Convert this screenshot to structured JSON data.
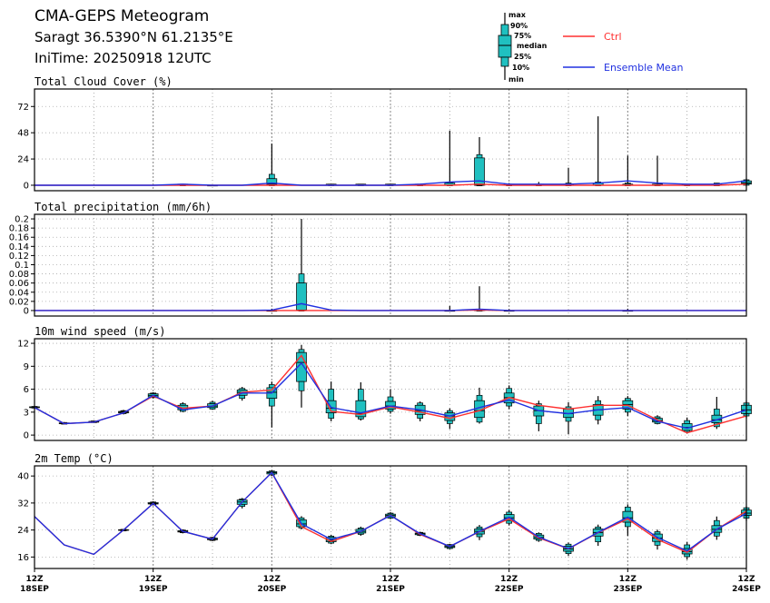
{
  "header": {
    "title": "CMA-GEPS Meteogram",
    "location": "Saragt 36.5390°N 61.2135°E",
    "init_time": "IniTime: 20250918 12UTC"
  },
  "legend": {
    "box_labels": [
      "max",
      "90%",
      "75%",
      "median",
      "25%",
      "10%",
      "min"
    ],
    "ctrl_label": "Ctrl",
    "mean_label": "Ensemble Mean",
    "ctrl_color": "#ff3030",
    "mean_color": "#2030e0",
    "box_color": "#20c0c0"
  },
  "x_axis": {
    "ticks": [
      {
        "hour": "12Z",
        "date": "18SEP",
        "t": 0
      },
      {
        "hour": "12Z",
        "date": "19SEP",
        "t": 4
      },
      {
        "hour": "12Z",
        "date": "20SEP",
        "t": 8
      },
      {
        "hour": "12Z",
        "date": "21SEP",
        "t": 12
      },
      {
        "hour": "12Z",
        "date": "22SEP",
        "t": 16
      },
      {
        "hour": "12Z",
        "date": "23SEP",
        "t": 20
      },
      {
        "hour": "12Z",
        "date": "24SEP",
        "t": 24
      }
    ]
  },
  "chart_data": [
    {
      "type": "box",
      "title": "Total Cloud Cover (%)",
      "ylim": [
        -5,
        88
      ],
      "yticks": [
        "0",
        "24",
        "48",
        "72"
      ],
      "ytick_values": [
        0,
        24,
        48,
        72
      ],
      "x": [
        0,
        1,
        2,
        3,
        4,
        5,
        6,
        7,
        8,
        9,
        10,
        11,
        12,
        13,
        14,
        15,
        16,
        17,
        18,
        19,
        20,
        21,
        22,
        23,
        24
      ],
      "ctrl": [
        0,
        0,
        0,
        0,
        0,
        0,
        0,
        0,
        0,
        0,
        0,
        0,
        0,
        0,
        0,
        1,
        0,
        0,
        0,
        0,
        0,
        0,
        0,
        0,
        1
      ],
      "mean": [
        0,
        0,
        0,
        0,
        0,
        1,
        0,
        0,
        2,
        0,
        0,
        0,
        0,
        1,
        3,
        4,
        1,
        1,
        1,
        2,
        4,
        2,
        1,
        1,
        4
      ],
      "boxes": [
        {
          "t": 5,
          "min": 0,
          "p10": 0,
          "p25": 0,
          "med": 0,
          "p75": 1,
          "p90": 1,
          "max": 1
        },
        {
          "t": 6,
          "min": 0,
          "p10": 0,
          "p25": 0,
          "med": 0,
          "p75": 0,
          "p90": 0,
          "max": 0
        },
        {
          "t": 8,
          "min": 0,
          "p10": 0,
          "p25": 0,
          "med": 1,
          "p75": 6,
          "p90": 10,
          "max": 38
        },
        {
          "t": 10,
          "min": 0,
          "p10": 0,
          "p25": 0,
          "med": 0,
          "p75": 1,
          "p90": 1,
          "max": 1
        },
        {
          "t": 11,
          "min": 0,
          "p10": 0,
          "p25": 0,
          "med": 0,
          "p75": 1,
          "p90": 1,
          "max": 1
        },
        {
          "t": 12,
          "min": 0,
          "p10": 0,
          "p25": 0,
          "med": 0,
          "p75": 1,
          "p90": 1,
          "max": 1
        },
        {
          "t": 13,
          "min": 0,
          "p10": 0,
          "p25": 0,
          "med": 0,
          "p75": 1,
          "p90": 1,
          "max": 1
        },
        {
          "t": 14,
          "min": 0,
          "p10": 0,
          "p25": 0,
          "med": 0,
          "p75": 2,
          "p90": 3,
          "max": 50
        },
        {
          "t": 15,
          "min": 0,
          "p10": 0,
          "p25": 0,
          "med": 0,
          "p75": 25,
          "p90": 28,
          "max": 44
        },
        {
          "t": 16,
          "min": 0,
          "p10": 0,
          "p25": 0,
          "med": 0,
          "p75": 1,
          "p90": 1,
          "max": 2
        },
        {
          "t": 17,
          "min": 0,
          "p10": 0,
          "p25": 0,
          "med": 0,
          "p75": 1,
          "p90": 1,
          "max": 3
        },
        {
          "t": 18,
          "min": 0,
          "p10": 0,
          "p25": 0,
          "med": 0,
          "p75": 1,
          "p90": 2,
          "max": 16
        },
        {
          "t": 19,
          "min": 0,
          "p10": 0,
          "p25": 0,
          "med": 0,
          "p75": 2,
          "p90": 3,
          "max": 63
        },
        {
          "t": 20,
          "min": 0,
          "p10": 0,
          "p25": 0,
          "med": 0,
          "p75": 1,
          "p90": 2,
          "max": 27
        },
        {
          "t": 21,
          "min": 0,
          "p10": 0,
          "p25": 0,
          "med": 0,
          "p75": 1,
          "p90": 1,
          "max": 27
        },
        {
          "t": 22,
          "min": 0,
          "p10": 0,
          "p25": 0,
          "med": 0,
          "p75": 1,
          "p90": 1,
          "max": 1
        },
        {
          "t": 23,
          "min": 0,
          "p10": 0,
          "p25": 0,
          "med": 0,
          "p75": 1,
          "p90": 2,
          "max": 2
        },
        {
          "t": 24,
          "min": 0,
          "p10": 0,
          "p25": 1,
          "med": 2,
          "p75": 4,
          "p90": 5,
          "max": 6
        }
      ]
    },
    {
      "type": "box",
      "title": "Total precipitation (mm/6h)",
      "ylim": [
        -0.012,
        0.21
      ],
      "yticks": [
        "0",
        "0.02",
        "0.04",
        "0.06",
        "0.08",
        "0.1",
        "0.12",
        "0.14",
        "0.16",
        "0.18",
        "0.2"
      ],
      "ytick_values": [
        0,
        0.02,
        0.04,
        0.06,
        0.08,
        0.1,
        0.12,
        0.14,
        0.16,
        0.18,
        0.2
      ],
      "x": [
        0,
        1,
        2,
        3,
        4,
        5,
        6,
        7,
        8,
        9,
        10,
        11,
        12,
        13,
        14,
        15,
        16,
        17,
        18,
        19,
        20,
        21,
        22,
        23,
        24
      ],
      "ctrl": [
        0,
        0,
        0,
        0,
        0,
        0,
        0,
        0,
        0,
        0,
        0,
        0,
        0,
        0,
        0,
        0.001,
        0,
        0,
        0,
        0,
        0,
        0,
        0,
        0,
        0
      ],
      "mean": [
        0,
        0,
        0,
        0,
        0,
        0,
        0,
        0,
        0.001,
        0.015,
        0.001,
        0,
        0,
        0,
        0,
        0.003,
        0,
        0,
        0,
        0,
        0,
        0,
        0,
        0,
        0
      ],
      "boxes": [
        {
          "t": 8,
          "min": 0,
          "p10": 0,
          "p25": 0,
          "med": 0,
          "p75": 0,
          "p90": 0,
          "max": 0.004
        },
        {
          "t": 9,
          "min": 0,
          "p10": 0,
          "p25": 0,
          "med": 0.001,
          "p75": 0.06,
          "p90": 0.08,
          "max": 0.2
        },
        {
          "t": 14,
          "min": 0,
          "p10": 0,
          "p25": 0,
          "med": 0,
          "p75": 0,
          "p90": 0,
          "max": 0.01
        },
        {
          "t": 15,
          "min": 0,
          "p10": 0,
          "p25": 0,
          "med": 0,
          "p75": 0.002,
          "p90": 0.003,
          "max": 0.053
        },
        {
          "t": 16,
          "min": 0,
          "p10": 0,
          "p25": 0,
          "med": 0,
          "p75": 0,
          "p90": 0,
          "max": 0.003
        },
        {
          "t": 20,
          "min": 0,
          "p10": 0,
          "p25": 0,
          "med": 0,
          "p75": 0,
          "p90": 0,
          "max": 0.004
        }
      ]
    },
    {
      "type": "box",
      "title": "10m wind speed (m/s)",
      "ylim": [
        -0.7,
        12.6
      ],
      "yticks": [
        "0",
        "3",
        "6",
        "9",
        "12"
      ],
      "ytick_values": [
        0,
        3,
        6,
        9,
        12
      ],
      "x": [
        0,
        1,
        2,
        3,
        4,
        5,
        6,
        7,
        8,
        9,
        10,
        11,
        12,
        13,
        14,
        15,
        16,
        17,
        18,
        19,
        20,
        21,
        22,
        23,
        24
      ],
      "ctrl": [
        3.6,
        1.5,
        1.7,
        2.9,
        5.1,
        3.5,
        3.8,
        5.6,
        5.9,
        10.4,
        3.1,
        2.7,
        3.7,
        3.0,
        2.2,
        3.2,
        4.9,
        3.9,
        3.4,
        3.9,
        3.9,
        2.0,
        0.3,
        1.4,
        2.5
      ],
      "mean": [
        3.6,
        1.5,
        1.7,
        2.9,
        5.2,
        3.3,
        3.8,
        5.5,
        5.5,
        9.4,
        3.6,
        2.9,
        3.8,
        3.3,
        2.5,
        3.6,
        4.6,
        3.2,
        2.8,
        3.3,
        3.6,
        1.8,
        0.9,
        2.0,
        3.3
      ],
      "boxes": [
        {
          "t": 0,
          "min": 3.5,
          "p10": 3.55,
          "p25": 3.6,
          "med": 3.6,
          "p75": 3.7,
          "p90": 3.75,
          "max": 3.8
        },
        {
          "t": 1,
          "min": 1.4,
          "p10": 1.45,
          "p25": 1.5,
          "med": 1.5,
          "p75": 1.6,
          "p90": 1.65,
          "max": 1.7
        },
        {
          "t": 2,
          "min": 1.6,
          "p10": 1.65,
          "p25": 1.7,
          "med": 1.7,
          "p75": 1.8,
          "p90": 1.85,
          "max": 1.9
        },
        {
          "t": 3,
          "min": 2.7,
          "p10": 2.8,
          "p25": 2.9,
          "med": 3.0,
          "p75": 3.1,
          "p90": 3.2,
          "max": 3.3
        },
        {
          "t": 4,
          "min": 4.8,
          "p10": 4.9,
          "p25": 5.0,
          "med": 5.2,
          "p75": 5.4,
          "p90": 5.5,
          "max": 5.6
        },
        {
          "t": 5,
          "min": 3.0,
          "p10": 3.1,
          "p25": 3.3,
          "med": 3.5,
          "p75": 3.9,
          "p90": 4.1,
          "max": 4.3
        },
        {
          "t": 6,
          "min": 3.3,
          "p10": 3.4,
          "p25": 3.6,
          "med": 3.8,
          "p75": 4.1,
          "p90": 4.3,
          "max": 4.5
        },
        {
          "t": 7,
          "min": 4.5,
          "p10": 4.8,
          "p25": 5.2,
          "med": 5.6,
          "p75": 5.9,
          "p90": 6.1,
          "max": 6.3
        },
        {
          "t": 8,
          "min": 1.0,
          "p10": 3.8,
          "p25": 4.8,
          "med": 5.6,
          "p75": 6.2,
          "p90": 6.6,
          "max": 7.0
        },
        {
          "t": 9,
          "min": 3.6,
          "p10": 5.8,
          "p25": 7.0,
          "med": 9.5,
          "p75": 10.8,
          "p90": 11.2,
          "max": 11.8
        },
        {
          "t": 10,
          "min": 1.8,
          "p10": 2.2,
          "p25": 2.9,
          "med": 3.5,
          "p75": 4.5,
          "p90": 6.0,
          "max": 7.0
        },
        {
          "t": 11,
          "min": 1.9,
          "p10": 2.1,
          "p25": 2.4,
          "med": 2.8,
          "p75": 4.5,
          "p90": 6.0,
          "max": 6.9
        },
        {
          "t": 12,
          "min": 2.8,
          "p10": 3.1,
          "p25": 3.4,
          "med": 3.8,
          "p75": 4.4,
          "p90": 5.0,
          "max": 6.0
        },
        {
          "t": 13,
          "min": 1.8,
          "p10": 2.2,
          "p25": 2.7,
          "med": 3.2,
          "p75": 3.9,
          "p90": 4.2,
          "max": 4.4
        },
        {
          "t": 14,
          "min": 0.8,
          "p10": 1.5,
          "p25": 1.9,
          "med": 2.5,
          "p75": 2.9,
          "p90": 3.2,
          "max": 3.5
        },
        {
          "t": 15,
          "min": 1.5,
          "p10": 1.7,
          "p25": 2.3,
          "med": 3.2,
          "p75": 4.5,
          "p90": 5.2,
          "max": 6.2
        },
        {
          "t": 16,
          "min": 3.4,
          "p10": 3.8,
          "p25": 4.2,
          "med": 4.9,
          "p75": 5.5,
          "p90": 6.1,
          "max": 6.5
        },
        {
          "t": 17,
          "min": 0.5,
          "p10": 1.5,
          "p25": 2.5,
          "med": 3.2,
          "p75": 3.8,
          "p90": 4.1,
          "max": 4.5
        },
        {
          "t": 18,
          "min": 0.1,
          "p10": 1.8,
          "p25": 2.3,
          "med": 2.8,
          "p75": 3.4,
          "p90": 3.7,
          "max": 4.3
        },
        {
          "t": 19,
          "min": 1.4,
          "p10": 2.0,
          "p25": 2.6,
          "med": 3.3,
          "p75": 4.0,
          "p90": 4.5,
          "max": 5.1
        },
        {
          "t": 20,
          "min": 2.5,
          "p10": 3.0,
          "p25": 3.4,
          "med": 4.0,
          "p75": 4.5,
          "p90": 4.8,
          "max": 5.1
        },
        {
          "t": 21,
          "min": 1.4,
          "p10": 1.5,
          "p25": 1.7,
          "med": 1.9,
          "p75": 2.2,
          "p90": 2.4,
          "max": 2.6
        },
        {
          "t": 22,
          "min": 0.2,
          "p10": 0.4,
          "p25": 0.6,
          "med": 1.0,
          "p75": 1.5,
          "p90": 1.9,
          "max": 2.3
        },
        {
          "t": 23,
          "min": 0.8,
          "p10": 1.1,
          "p25": 1.6,
          "med": 2.0,
          "p75": 2.6,
          "p90": 3.4,
          "max": 5.0
        },
        {
          "t": 24,
          "min": 2.2,
          "p10": 2.5,
          "p25": 2.8,
          "med": 3.3,
          "p75": 3.9,
          "p90": 4.2,
          "max": 4.5
        }
      ]
    },
    {
      "type": "box",
      "title": "2m Temp (°C)",
      "ylim": [
        12.6,
        43
      ],
      "yticks": [
        "16",
        "24",
        "32",
        "40"
      ],
      "ytick_values": [
        16,
        24,
        32,
        40
      ],
      "x": [
        0,
        1,
        2,
        3,
        4,
        5,
        6,
        7,
        8,
        9,
        10,
        11,
        12,
        13,
        14,
        15,
        16,
        17,
        18,
        19,
        20,
        21,
        22,
        23,
        24
      ],
      "ctrl": [
        28,
        19.6,
        16.8,
        24,
        31.9,
        23.6,
        21.3,
        32.3,
        41,
        25,
        20.6,
        23.6,
        28.4,
        22.7,
        19.1,
        23.5,
        27.3,
        21.7,
        18.4,
        23.2,
        27.3,
        21.2,
        17.4,
        24.2,
        29.6
      ],
      "mean": [
        28,
        19.6,
        16.8,
        24,
        31.9,
        23.6,
        21.3,
        32.3,
        41,
        25.8,
        21.2,
        23.6,
        28.3,
        22.9,
        19.1,
        23.6,
        27.8,
        21.9,
        18.5,
        23.3,
        27.8,
        21.8,
        17.8,
        24.2,
        28.9
      ],
      "boxes": [
        {
          "t": 3,
          "min": 23.7,
          "p10": 23.8,
          "p25": 23.9,
          "med": 24,
          "p75": 24.1,
          "p90": 24.2,
          "max": 24.3
        },
        {
          "t": 4,
          "min": 31.3,
          "p10": 31.5,
          "p25": 31.7,
          "med": 31.9,
          "p75": 32.1,
          "p90": 32.3,
          "max": 32.5
        },
        {
          "t": 5,
          "min": 23.0,
          "p10": 23.2,
          "p25": 23.4,
          "med": 23.6,
          "p75": 23.8,
          "p90": 24.0,
          "max": 24.2
        },
        {
          "t": 6,
          "min": 20.7,
          "p10": 20.9,
          "p25": 21.1,
          "med": 21.3,
          "p75": 21.6,
          "p90": 21.8,
          "max": 22.0
        },
        {
          "t": 7,
          "min": 30.4,
          "p10": 31.0,
          "p25": 31.6,
          "med": 32.3,
          "p75": 32.9,
          "p90": 33.2,
          "max": 33.5
        },
        {
          "t": 8,
          "min": 40.0,
          "p10": 40.3,
          "p25": 40.6,
          "med": 41,
          "p75": 41.3,
          "p90": 41.5,
          "max": 41.7
        },
        {
          "t": 9,
          "min": 24.2,
          "p10": 24.6,
          "p25": 25.0,
          "med": 25.8,
          "p75": 27.0,
          "p90": 27.6,
          "max": 28.1
        },
        {
          "t": 10,
          "min": 19.8,
          "p10": 20.1,
          "p25": 20.5,
          "med": 21.0,
          "p75": 21.8,
          "p90": 22.2,
          "max": 22.6
        },
        {
          "t": 11,
          "min": 22.3,
          "p10": 22.7,
          "p25": 23.1,
          "med": 23.6,
          "p75": 24.2,
          "p90": 24.6,
          "max": 25.0
        },
        {
          "t": 12,
          "min": 27.2,
          "p10": 27.5,
          "p25": 27.9,
          "med": 28.3,
          "p75": 28.7,
          "p90": 29.0,
          "max": 29.3
        },
        {
          "t": 13,
          "min": 22.2,
          "p10": 22.4,
          "p25": 22.6,
          "med": 22.9,
          "p75": 23.1,
          "p90": 23.3,
          "max": 23.5
        },
        {
          "t": 14,
          "min": 18.3,
          "p10": 18.5,
          "p25": 18.8,
          "med": 19.1,
          "p75": 19.4,
          "p90": 19.7,
          "max": 19.9
        },
        {
          "t": 15,
          "min": 21.0,
          "p10": 22.0,
          "p25": 22.8,
          "med": 23.6,
          "p75": 24.3,
          "p90": 24.9,
          "max": 25.5
        },
        {
          "t": 16,
          "min": 25.4,
          "p10": 26.0,
          "p25": 26.8,
          "med": 27.6,
          "p75": 28.6,
          "p90": 29.3,
          "max": 29.9
        },
        {
          "t": 17,
          "min": 20.5,
          "p10": 20.9,
          "p25": 21.3,
          "med": 21.8,
          "p75": 22.5,
          "p90": 23.0,
          "max": 23.3
        },
        {
          "t": 18,
          "min": 16.3,
          "p10": 17.0,
          "p25": 17.7,
          "med": 18.4,
          "p75": 19.2,
          "p90": 19.8,
          "max": 20.3
        },
        {
          "t": 19,
          "min": 19.3,
          "p10": 20.5,
          "p25": 22.2,
          "med": 23.2,
          "p75": 24.3,
          "p90": 24.9,
          "max": 25.6
        },
        {
          "t": 20,
          "min": 22.3,
          "p10": 25.0,
          "p25": 26.3,
          "med": 27.6,
          "p75": 29.5,
          "p90": 30.8,
          "max": 31.6
        },
        {
          "t": 21,
          "min": 18.2,
          "p10": 19.5,
          "p25": 20.6,
          "med": 21.6,
          "p75": 22.8,
          "p90": 23.5,
          "max": 24.1
        },
        {
          "t": 22,
          "min": 15.2,
          "p10": 16.1,
          "p25": 16.9,
          "med": 17.6,
          "p75": 18.5,
          "p90": 19.6,
          "max": 20.5
        },
        {
          "t": 23,
          "min": 21.1,
          "p10": 22.2,
          "p25": 23.3,
          "med": 24.2,
          "p75": 25.3,
          "p90": 26.8,
          "max": 28.0
        },
        {
          "t": 24,
          "min": 26.7,
          "p10": 27.5,
          "p25": 28.3,
          "med": 29.0,
          "p75": 29.9,
          "p90": 30.6,
          "max": 31.0
        }
      ]
    }
  ]
}
